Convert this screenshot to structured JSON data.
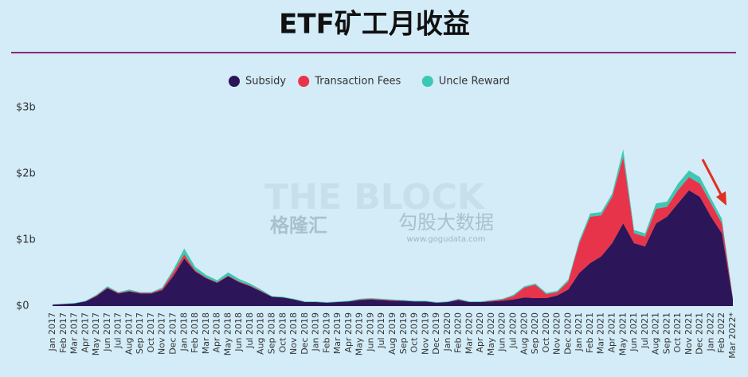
{
  "chart_data": {
    "type": "stacked-area",
    "title": "ETF矿工月收益",
    "watermarks": [
      "THE BLOCK",
      "格隆汇",
      "勾股大数据",
      "www.gogudata.com"
    ],
    "categories": [
      "Jan 2017",
      "Feb 2017",
      "Mar 2017",
      "Apr 2017",
      "May 2017",
      "Jun 2017",
      "Jul 2017",
      "Aug 2017",
      "Sep 2017",
      "Oct 2017",
      "Nov 2017",
      "Dec 2017",
      "Jan 2018",
      "Feb 2018",
      "Mar 2018",
      "Apr 2018",
      "May 2018",
      "Jun 2018",
      "Jul 2018",
      "Aug 2018",
      "Sep 2018",
      "Oct 2018",
      "Nov 2018",
      "Dec 2018",
      "Jan 2019",
      "Feb 2019",
      "Mar 2019",
      "Apr 2019",
      "May 2019",
      "Jun 2019",
      "Jul 2019",
      "Aug 2019",
      "Sep 2019",
      "Oct 2019",
      "Nov 2019",
      "Dec 2019",
      "Jan 2020",
      "Feb 2020",
      "Mar 2020",
      "Apr 2020",
      "May 2020",
      "Jun 2020",
      "Jul 2020",
      "Aug 2020",
      "Sep 2020",
      "Oct 2020",
      "Nov 2020",
      "Dec 2020",
      "Jan 2021",
      "Feb 2021",
      "Mar 2021",
      "Apr 2021",
      "May 2021",
      "Jun 2021",
      "Jul 2021",
      "Aug 2021",
      "Sep 2021",
      "Oct 2021",
      "Nov 2021",
      "Dec 2021",
      "Jan 2022",
      "Feb 2022",
      "Mar 2022*"
    ],
    "series": [
      {
        "name": "Subsidy",
        "color": "#2d1559",
        "values": [
          0.02,
          0.03,
          0.04,
          0.07,
          0.15,
          0.27,
          0.19,
          0.22,
          0.19,
          0.19,
          0.24,
          0.45,
          0.72,
          0.52,
          0.42,
          0.35,
          0.45,
          0.36,
          0.3,
          0.22,
          0.14,
          0.13,
          0.1,
          0.06,
          0.06,
          0.05,
          0.06,
          0.07,
          0.09,
          0.1,
          0.09,
          0.08,
          0.08,
          0.07,
          0.07,
          0.05,
          0.06,
          0.09,
          0.06,
          0.06,
          0.07,
          0.08,
          0.1,
          0.13,
          0.12,
          0.12,
          0.16,
          0.25,
          0.5,
          0.65,
          0.75,
          0.95,
          1.25,
          0.95,
          0.9,
          1.25,
          1.35,
          1.55,
          1.75,
          1.65,
          1.35,
          1.1,
          0.1
        ]
      },
      {
        "name": "Transaction Fees",
        "color": "#e8344a",
        "values": [
          0,
          0,
          0,
          0,
          0.01,
          0.01,
          0.01,
          0.01,
          0.01,
          0.01,
          0.02,
          0.06,
          0.06,
          0.02,
          0.01,
          0.01,
          0.01,
          0.01,
          0.01,
          0.01,
          0,
          0,
          0,
          0,
          0,
          0,
          0,
          0,
          0.01,
          0.01,
          0.01,
          0.01,
          0,
          0,
          0,
          0,
          0,
          0.01,
          0,
          0,
          0.01,
          0.02,
          0.05,
          0.15,
          0.2,
          0.06,
          0.05,
          0.12,
          0.45,
          0.7,
          0.62,
          0.7,
          1.0,
          0.15,
          0.15,
          0.22,
          0.15,
          0.2,
          0.2,
          0.2,
          0.2,
          0.15,
          0.02
        ]
      },
      {
        "name": "Uncle Reward",
        "color": "#3cc8b4",
        "values": [
          0.005,
          0.005,
          0.005,
          0.01,
          0.01,
          0.02,
          0.01,
          0.02,
          0.01,
          0.01,
          0.02,
          0.04,
          0.09,
          0.05,
          0.04,
          0.03,
          0.05,
          0.04,
          0.03,
          0.02,
          0.01,
          0.01,
          0.01,
          0.01,
          0.01,
          0.01,
          0.01,
          0.01,
          0.01,
          0.01,
          0.01,
          0.01,
          0.01,
          0.01,
          0.01,
          0.01,
          0.01,
          0.01,
          0.01,
          0.01,
          0.01,
          0.01,
          0.02,
          0.02,
          0.02,
          0.02,
          0.02,
          0.03,
          0.04,
          0.05,
          0.05,
          0.05,
          0.12,
          0.05,
          0.05,
          0.08,
          0.08,
          0.1,
          0.1,
          0.1,
          0.08,
          0.07,
          0.01
        ]
      }
    ],
    "ylim": [
      0,
      3
    ],
    "yticks": [
      {
        "value": 0,
        "label": "$0"
      },
      {
        "value": 1,
        "label": "$1b"
      },
      {
        "value": 2,
        "label": "$2b"
      },
      {
        "value": 3,
        "label": "$3b"
      }
    ],
    "legend": "top"
  }
}
